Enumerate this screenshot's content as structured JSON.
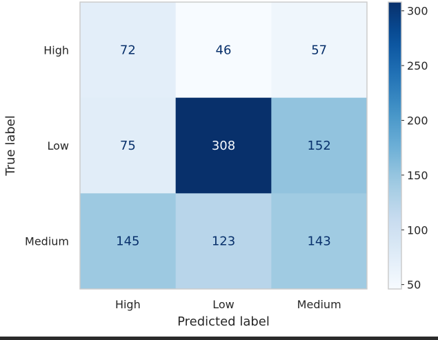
{
  "chart_data": {
    "type": "heatmap",
    "title": "",
    "xlabel": "Predicted label",
    "ylabel": "True label",
    "x_categories": [
      "High",
      "Low",
      "Medium"
    ],
    "y_categories": [
      "High",
      "Low",
      "Medium"
    ],
    "values": [
      [
        72,
        46,
        57
      ],
      [
        75,
        308,
        152
      ],
      [
        145,
        123,
        143
      ]
    ],
    "colormap": "Blues",
    "colorbar": {
      "range": [
        46,
        308
      ],
      "ticks": [
        50,
        100,
        150,
        200,
        250,
        300
      ]
    },
    "grid": false
  }
}
